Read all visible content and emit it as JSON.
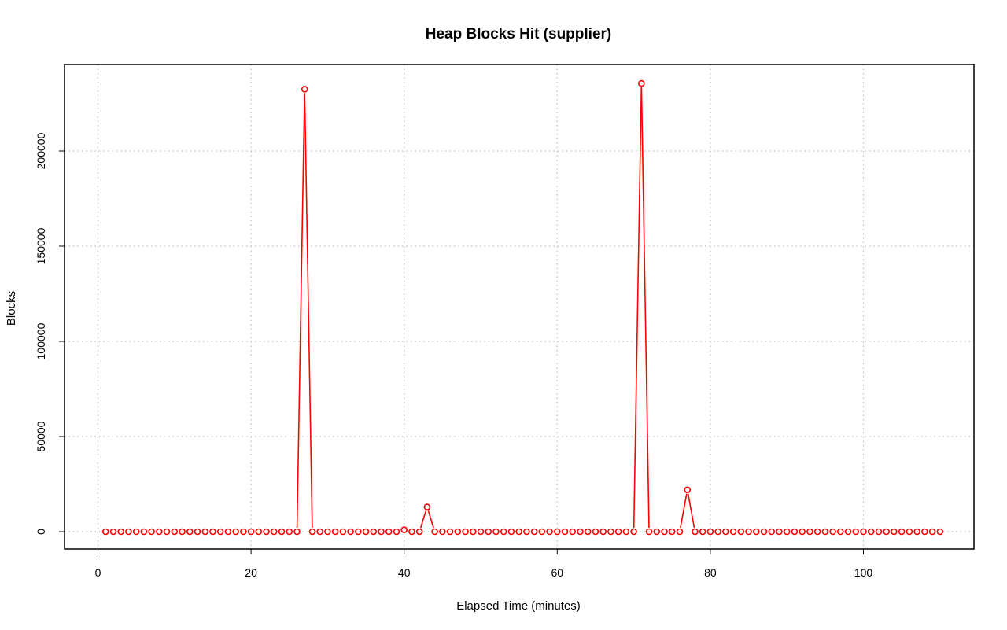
{
  "chart_data": {
    "type": "line",
    "title": "Heap Blocks Hit (supplier)",
    "xlabel": "Elapsed Time (minutes)",
    "ylabel": "Blocks",
    "xlim": [
      0,
      112
    ],
    "ylim": [
      0,
      240000
    ],
    "x_ticks": [
      0,
      20,
      40,
      60,
      80,
      100
    ],
    "y_ticks": [
      0,
      50000,
      100000,
      150000,
      200000
    ],
    "grid": true,
    "line_color": "#ff0000",
    "grid_color": "#bebebe",
    "x": [
      1,
      2,
      3,
      4,
      5,
      6,
      7,
      8,
      9,
      10,
      11,
      12,
      13,
      14,
      15,
      16,
      17,
      18,
      19,
      20,
      21,
      22,
      23,
      24,
      25,
      26,
      27,
      28,
      29,
      30,
      31,
      32,
      33,
      34,
      35,
      36,
      37,
      38,
      39,
      40,
      41,
      42,
      43,
      44,
      45,
      46,
      47,
      48,
      49,
      50,
      51,
      52,
      53,
      54,
      55,
      56,
      57,
      58,
      59,
      60,
      61,
      62,
      63,
      64,
      65,
      66,
      67,
      68,
      69,
      70,
      71,
      72,
      73,
      74,
      75,
      76,
      77,
      78,
      79,
      80,
      81,
      82,
      83,
      84,
      85,
      86,
      87,
      88,
      89,
      90,
      91,
      92,
      93,
      94,
      95,
      96,
      97,
      98,
      99,
      100,
      101,
      102,
      103,
      104,
      105,
      106,
      107,
      108,
      109,
      110
    ],
    "y": [
      0,
      0,
      0,
      0,
      0,
      0,
      0,
      0,
      0,
      0,
      0,
      0,
      0,
      0,
      0,
      0,
      0,
      0,
      0,
      0,
      0,
      0,
      0,
      0,
      0,
      0,
      232500,
      0,
      0,
      0,
      0,
      0,
      0,
      0,
      0,
      0,
      0,
      0,
      0,
      1000,
      0,
      0,
      13000,
      0,
      0,
      0,
      0,
      0,
      0,
      0,
      0,
      0,
      0,
      0,
      0,
      0,
      0,
      0,
      0,
      0,
      0,
      0,
      0,
      0,
      0,
      0,
      0,
      0,
      0,
      0,
      235500,
      0,
      0,
      0,
      0,
      0,
      22000,
      0,
      0,
      0,
      0,
      0,
      0,
      0,
      0,
      0,
      0,
      0,
      0,
      0,
      0,
      0,
      0,
      0,
      0,
      0,
      0,
      0,
      0,
      0,
      0,
      0,
      0,
      0,
      0,
      0,
      0,
      0,
      0,
      0
    ]
  }
}
